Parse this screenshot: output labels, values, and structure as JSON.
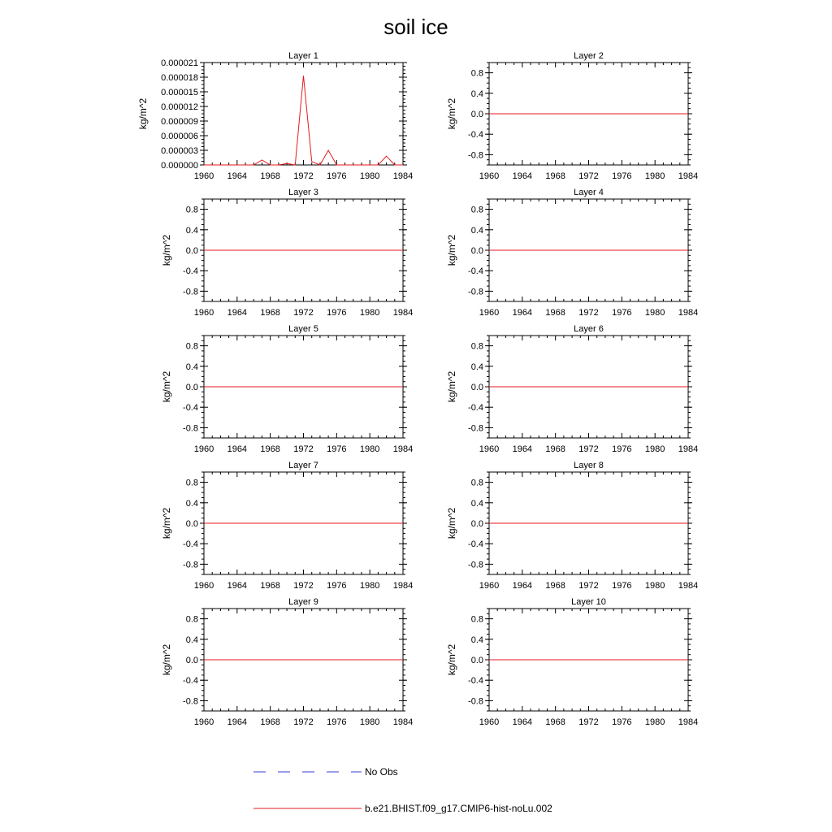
{
  "title": "soil ice",
  "legend": {
    "placement": "bottom",
    "entries": [
      {
        "label": "No Obs",
        "color": "#3b3bd6",
        "style": "dashed"
      },
      {
        "label": "b.e21.BHIST.f09_g17.CMIP6-hist-noLu.002",
        "color": "#e41a1c",
        "style": "solid"
      }
    ]
  },
  "chart_data": [
    {
      "type": "line",
      "title": "Layer 1",
      "xlabel": "",
      "ylabel": "kg/m^2",
      "xlim": [
        1960,
        1984
      ],
      "ylim": [
        0,
        2.1e-05
      ],
      "xticks": [
        "1960",
        "1964",
        "1968",
        "1972",
        "1976",
        "1980",
        "1984"
      ],
      "yticks": [
        "0.000000",
        "0.000003",
        "0.000006",
        "0.000009",
        "0.000012",
        "0.000015",
        "0.000018",
        "0.000021"
      ],
      "grid": false,
      "series": [
        {
          "name": "b.e21.BHIST.f09_g17.CMIP6-hist-noLu.002",
          "color": "#e41a1c",
          "x": [
            1960,
            1961,
            1962,
            1963,
            1964,
            1965,
            1966,
            1967,
            1968,
            1969,
            1970,
            1971,
            1972,
            1973,
            1974,
            1975,
            1976,
            1977,
            1978,
            1979,
            1980,
            1981,
            1982,
            1983,
            1984
          ],
          "y": [
            0,
            0,
            0,
            0,
            0,
            0,
            0,
            1e-06,
            0,
            0,
            3e-07,
            0,
            1.83e-05,
            7e-07,
            0,
            3e-06,
            0,
            0,
            0,
            0,
            0,
            0,
            1.8e-06,
            0,
            0
          ]
        }
      ]
    },
    {
      "type": "line",
      "title": "Layer 2",
      "xlabel": "",
      "ylabel": "kg/m^2",
      "xlim": [
        1960,
        1984
      ],
      "ylim": [
        -1,
        1
      ],
      "xticks": [
        "1960",
        "1964",
        "1968",
        "1972",
        "1976",
        "1980",
        "1984"
      ],
      "yticks": [
        "-0.8",
        "-0.4",
        "0.0",
        "0.4",
        "0.8"
      ],
      "grid": false,
      "series": [
        {
          "name": "b.e21.BHIST.f09_g17.CMIP6-hist-noLu.002",
          "color": "#e41a1c",
          "x": [
            1960,
            1984
          ],
          "y": [
            0,
            0
          ]
        }
      ]
    },
    {
      "type": "line",
      "title": "Layer 3",
      "xlabel": "",
      "ylabel": "kg/m^2",
      "xlim": [
        1960,
        1984
      ],
      "ylim": [
        -1,
        1
      ],
      "xticks": [
        "1960",
        "1964",
        "1968",
        "1972",
        "1976",
        "1980",
        "1984"
      ],
      "yticks": [
        "-0.8",
        "-0.4",
        "0.0",
        "0.4",
        "0.8"
      ],
      "grid": false,
      "series": [
        {
          "name": "b.e21.BHIST.f09_g17.CMIP6-hist-noLu.002",
          "color": "#e41a1c",
          "x": [
            1960,
            1984
          ],
          "y": [
            0,
            0
          ]
        }
      ]
    },
    {
      "type": "line",
      "title": "Layer 4",
      "xlabel": "",
      "ylabel": "kg/m^2",
      "xlim": [
        1960,
        1984
      ],
      "ylim": [
        -1,
        1
      ],
      "xticks": [
        "1960",
        "1964",
        "1968",
        "1972",
        "1976",
        "1980",
        "1984"
      ],
      "yticks": [
        "-0.8",
        "-0.4",
        "0.0",
        "0.4",
        "0.8"
      ],
      "grid": false,
      "series": [
        {
          "name": "b.e21.BHIST.f09_g17.CMIP6-hist-noLu.002",
          "color": "#e41a1c",
          "x": [
            1960,
            1984
          ],
          "y": [
            0,
            0
          ]
        }
      ]
    },
    {
      "type": "line",
      "title": "Layer 5",
      "xlabel": "",
      "ylabel": "kg/m^2",
      "xlim": [
        1960,
        1984
      ],
      "ylim": [
        -1,
        1
      ],
      "xticks": [
        "1960",
        "1964",
        "1968",
        "1972",
        "1976",
        "1980",
        "1984"
      ],
      "yticks": [
        "-0.8",
        "-0.4",
        "0.0",
        "0.4",
        "0.8"
      ],
      "grid": false,
      "series": [
        {
          "name": "b.e21.BHIST.f09_g17.CMIP6-hist-noLu.002",
          "color": "#e41a1c",
          "x": [
            1960,
            1984
          ],
          "y": [
            0,
            0
          ]
        }
      ]
    },
    {
      "type": "line",
      "title": "Layer 6",
      "xlabel": "",
      "ylabel": "kg/m^2",
      "xlim": [
        1960,
        1984
      ],
      "ylim": [
        -1,
        1
      ],
      "xticks": [
        "1960",
        "1964",
        "1968",
        "1972",
        "1976",
        "1980",
        "1984"
      ],
      "yticks": [
        "-0.8",
        "-0.4",
        "0.0",
        "0.4",
        "0.8"
      ],
      "grid": false,
      "series": [
        {
          "name": "b.e21.BHIST.f09_g17.CMIP6-hist-noLu.002",
          "color": "#e41a1c",
          "x": [
            1960,
            1984
          ],
          "y": [
            0,
            0
          ]
        }
      ]
    },
    {
      "type": "line",
      "title": "Layer 7",
      "xlabel": "",
      "ylabel": "kg/m^2",
      "xlim": [
        1960,
        1984
      ],
      "ylim": [
        -1,
        1
      ],
      "xticks": [
        "1960",
        "1964",
        "1968",
        "1972",
        "1976",
        "1980",
        "1984"
      ],
      "yticks": [
        "-0.8",
        "-0.4",
        "0.0",
        "0.4",
        "0.8"
      ],
      "grid": false,
      "series": [
        {
          "name": "b.e21.BHIST.f09_g17.CMIP6-hist-noLu.002",
          "color": "#e41a1c",
          "x": [
            1960,
            1984
          ],
          "y": [
            0,
            0
          ]
        }
      ]
    },
    {
      "type": "line",
      "title": "Layer 8",
      "xlabel": "",
      "ylabel": "kg/m^2",
      "xlim": [
        1960,
        1984
      ],
      "ylim": [
        -1,
        1
      ],
      "xticks": [
        "1960",
        "1964",
        "1968",
        "1972",
        "1976",
        "1980",
        "1984"
      ],
      "yticks": [
        "-0.8",
        "-0.4",
        "0.0",
        "0.4",
        "0.8"
      ],
      "grid": false,
      "series": [
        {
          "name": "b.e21.BHIST.f09_g17.CMIP6-hist-noLu.002",
          "color": "#e41a1c",
          "x": [
            1960,
            1984
          ],
          "y": [
            0,
            0
          ]
        }
      ]
    },
    {
      "type": "line",
      "title": "Layer 9",
      "xlabel": "",
      "ylabel": "kg/m^2",
      "xlim": [
        1960,
        1984
      ],
      "ylim": [
        -1,
        1
      ],
      "xticks": [
        "1960",
        "1964",
        "1968",
        "1972",
        "1976",
        "1980",
        "1984"
      ],
      "yticks": [
        "-0.8",
        "-0.4",
        "0.0",
        "0.4",
        "0.8"
      ],
      "grid": false,
      "series": [
        {
          "name": "b.e21.BHIST.f09_g17.CMIP6-hist-noLu.002",
          "color": "#e41a1c",
          "x": [
            1960,
            1984
          ],
          "y": [
            0,
            0
          ]
        }
      ]
    },
    {
      "type": "line",
      "title": "Layer 10",
      "xlabel": "",
      "ylabel": "kg/m^2",
      "xlim": [
        1960,
        1984
      ],
      "ylim": [
        -1,
        1
      ],
      "xticks": [
        "1960",
        "1964",
        "1968",
        "1972",
        "1976",
        "1980",
        "1984"
      ],
      "yticks": [
        "-0.8",
        "-0.4",
        "0.0",
        "0.4",
        "0.8"
      ],
      "grid": false,
      "series": [
        {
          "name": "b.e21.BHIST.f09_g17.CMIP6-hist-noLu.002",
          "color": "#e41a1c",
          "x": [
            1960,
            1984
          ],
          "y": [
            0,
            0
          ]
        }
      ]
    }
  ]
}
